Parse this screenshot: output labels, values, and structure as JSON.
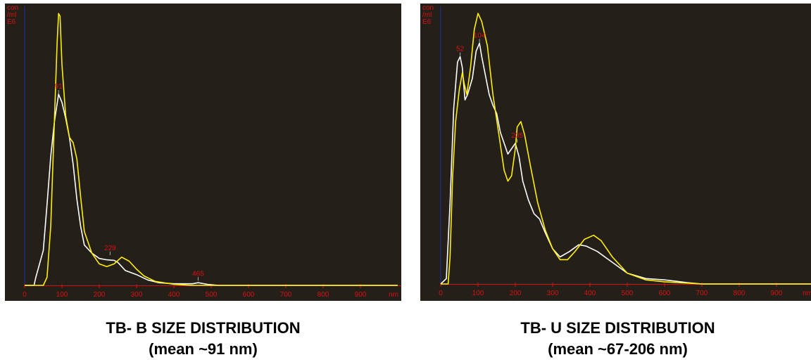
{
  "colors": {
    "background": "#242019",
    "axis_y": "#1a2fb5",
    "axis_x": "#d81010",
    "series_white": "#ffffff",
    "series_yellow": "#ffee00",
    "text": "#d81010"
  },
  "captions": [
    {
      "line1": "TB- B SIZE DISTRIBUTION",
      "line2": "(mean ~91 nm)"
    },
    {
      "line1": "TB- U SIZE DISTRIBUTION",
      "line2": "(mean ~67-206 nm)"
    }
  ],
  "chart_data": [
    {
      "type": "line",
      "title": "",
      "ylabel_lines": [
        "con",
        "/ml",
        "E6"
      ],
      "xlabel": "nm",
      "xlim": [
        0,
        1000
      ],
      "ylim": [
        0,
        100
      ],
      "xticks": [
        "0",
        "100",
        "200",
        "300",
        "400",
        "500",
        "600",
        "700",
        "800",
        "900"
      ],
      "grid": false,
      "series": [
        {
          "color": "white",
          "points": [
            [
              0,
              0
            ],
            [
              25,
              0
            ],
            [
              30,
              3
            ],
            [
              40,
              8
            ],
            [
              50,
              13
            ],
            [
              60,
              30
            ],
            [
              70,
              48
            ],
            [
              80,
              61
            ],
            [
              91,
              71
            ],
            [
              100,
              68
            ],
            [
              110,
              62
            ],
            [
              120,
              55
            ],
            [
              130,
              45
            ],
            [
              140,
              32
            ],
            [
              150,
              22
            ],
            [
              160,
              15
            ],
            [
              180,
              12
            ],
            [
              200,
              10
            ],
            [
              220,
              9.5
            ],
            [
              240,
              9.3
            ],
            [
              250,
              8.5
            ],
            [
              270,
              5.5
            ],
            [
              300,
              4
            ],
            [
              330,
              2
            ],
            [
              360,
              1
            ],
            [
              400,
              0.6
            ],
            [
              450,
              0.6
            ],
            [
              465,
              1
            ],
            [
              490,
              0.4
            ],
            [
              520,
              0
            ],
            [
              1000,
              0
            ]
          ]
        },
        {
          "color": "yellow",
          "points": [
            [
              0,
              0
            ],
            [
              50,
              0
            ],
            [
              60,
              3
            ],
            [
              70,
              22
            ],
            [
              80,
              62
            ],
            [
              87,
              90
            ],
            [
              91,
              101
            ],
            [
              95,
              100
            ],
            [
              100,
              82
            ],
            [
              110,
              63
            ],
            [
              120,
              55
            ],
            [
              130,
              53
            ],
            [
              140,
              47
            ],
            [
              150,
              33
            ],
            [
              160,
              20
            ],
            [
              180,
              12
            ],
            [
              200,
              8
            ],
            [
              220,
              7
            ],
            [
              240,
              8
            ],
            [
              260,
              10.5
            ],
            [
              280,
              9
            ],
            [
              300,
              6
            ],
            [
              320,
              3.5
            ],
            [
              350,
              1.5
            ],
            [
              400,
              0.4
            ],
            [
              450,
              0
            ],
            [
              1000,
              0
            ]
          ]
        }
      ],
      "annotations": [
        {
          "x": 91,
          "y": 71,
          "text": "91"
        },
        {
          "x": 229,
          "y": 11,
          "text": "229"
        },
        {
          "x": 465,
          "y": 1.5,
          "text": "465"
        }
      ]
    },
    {
      "type": "line",
      "title": "",
      "ylabel_lines": [
        "con",
        "/ml",
        "E6"
      ],
      "xlabel": "nm",
      "xlim": [
        0,
        1000
      ],
      "ylim": [
        0,
        100
      ],
      "xticks": [
        "0",
        "100",
        "200",
        "300",
        "400",
        "500",
        "600",
        "700",
        "800",
        "900"
      ],
      "grid": false,
      "series": [
        {
          "color": "white",
          "points": [
            [
              0,
              0
            ],
            [
              15,
              2
            ],
            [
              25,
              30
            ],
            [
              35,
              65
            ],
            [
              45,
              82
            ],
            [
              52,
              84
            ],
            [
              58,
              80
            ],
            [
              65,
              68
            ],
            [
              72,
              70
            ],
            [
              85,
              76
            ],
            [
              95,
              86
            ],
            [
              104,
              89
            ],
            [
              110,
              84
            ],
            [
              120,
              77
            ],
            [
              130,
              70
            ],
            [
              140,
              66
            ],
            [
              150,
              63
            ],
            [
              160,
              56
            ],
            [
              170,
              52
            ],
            [
              180,
              48
            ],
            [
              190,
              50
            ],
            [
              200,
              52
            ],
            [
              210,
              47
            ],
            [
              220,
              38
            ],
            [
              235,
              31
            ],
            [
              250,
              26
            ],
            [
              265,
              24
            ],
            [
              280,
              19
            ],
            [
              300,
              13
            ],
            [
              320,
              10
            ],
            [
              345,
              12
            ],
            [
              370,
              14.5
            ],
            [
              390,
              14
            ],
            [
              420,
              12
            ],
            [
              450,
              9
            ],
            [
              480,
              6
            ],
            [
              500,
              4
            ],
            [
              550,
              2
            ],
            [
              600,
              1.5
            ],
            [
              630,
              1
            ],
            [
              660,
              0.5
            ],
            [
              700,
              0
            ],
            [
              1000,
              0
            ]
          ]
        },
        {
          "color": "yellow",
          "points": [
            [
              0,
              0
            ],
            [
              20,
              0
            ],
            [
              25,
              10
            ],
            [
              32,
              40
            ],
            [
              40,
              60
            ],
            [
              50,
              72
            ],
            [
              58,
              78
            ],
            [
              63,
              74
            ],
            [
              70,
              70
            ],
            [
              80,
              80
            ],
            [
              90,
              94
            ],
            [
              100,
              100
            ],
            [
              110,
              97
            ],
            [
              125,
              88
            ],
            [
              140,
              70
            ],
            [
              155,
              56
            ],
            [
              170,
              42
            ],
            [
              180,
              38
            ],
            [
              190,
              40
            ],
            [
              200,
              50
            ],
            [
              205,
              58
            ],
            [
              215,
              60
            ],
            [
              225,
              55
            ],
            [
              240,
              44
            ],
            [
              260,
              30
            ],
            [
              280,
              20
            ],
            [
              300,
              13
            ],
            [
              320,
              9
            ],
            [
              340,
              9
            ],
            [
              360,
              12
            ],
            [
              385,
              16.5
            ],
            [
              410,
              18
            ],
            [
              430,
              16
            ],
            [
              460,
              10
            ],
            [
              500,
              4
            ],
            [
              550,
              1.5
            ],
            [
              600,
              0.8
            ],
            [
              650,
              0.4
            ],
            [
              700,
              0
            ],
            [
              1000,
              0
            ]
          ]
        }
      ],
      "annotations": [
        {
          "x": 52,
          "y": 84,
          "text": "52"
        },
        {
          "x": 104,
          "y": 89,
          "text": "104"
        },
        {
          "x": 205,
          "y": 52,
          "text": "205"
        }
      ]
    }
  ]
}
